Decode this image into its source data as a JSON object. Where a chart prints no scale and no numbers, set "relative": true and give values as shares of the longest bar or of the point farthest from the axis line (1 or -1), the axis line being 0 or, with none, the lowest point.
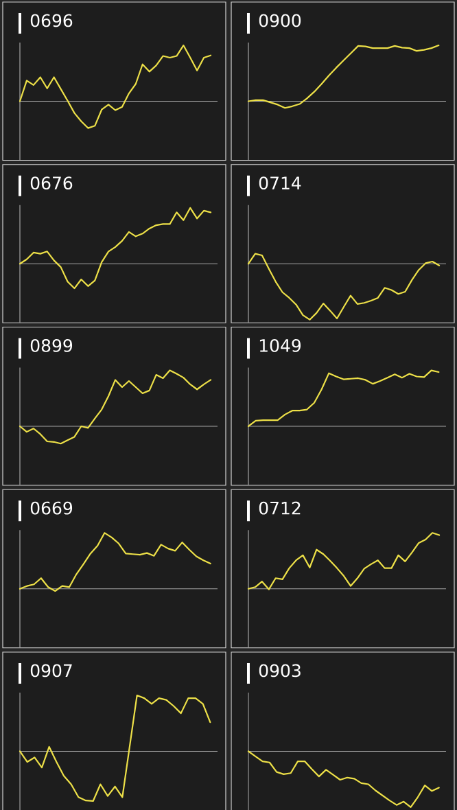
{
  "chart_data": [
    {
      "type": "line",
      "title": "0696",
      "categories": [
        null,
        null,
        null,
        null,
        null,
        null,
        null,
        null,
        null,
        null,
        null,
        null,
        null,
        null,
        null,
        null,
        null,
        null,
        null,
        null,
        null,
        null,
        null,
        null,
        null,
        null,
        null,
        null,
        null
      ],
      "values": [
        0,
        0.37,
        0.29,
        0.43,
        0.23,
        0.43,
        0.22,
        0.01,
        -0.21,
        -0.36,
        -0.48,
        -0.44,
        -0.15,
        -0.06,
        -0.16,
        -0.1,
        0.14,
        0.31,
        0.66,
        0.53,
        0.64,
        0.81,
        0.78,
        0.81,
        1.0,
        0.78,
        0.55,
        0.78,
        0.82
      ],
      "color": "#ede048",
      "relative": true
    },
    {
      "type": "line",
      "title": "0900",
      "categories": [
        null,
        null,
        null,
        null,
        null,
        null,
        null,
        null,
        null,
        null,
        null,
        null,
        null,
        null,
        null,
        null,
        null,
        null,
        null,
        null,
        null,
        null,
        null,
        null,
        null,
        null,
        null
      ],
      "values": [
        0,
        0.02,
        0.02,
        -0.02,
        -0.06,
        -0.12,
        -0.09,
        -0.05,
        0.05,
        0.17,
        0.31,
        0.46,
        0.6,
        0.73,
        0.86,
        0.99,
        0.98,
        0.95,
        0.95,
        0.95,
        0.99,
        0.96,
        0.95,
        0.9,
        0.92,
        0.95,
        1.0
      ],
      "color": "#ede048",
      "relative": true
    },
    {
      "type": "line",
      "title": "0676",
      "categories": [
        null,
        null,
        null,
        null,
        null,
        null,
        null,
        null,
        null,
        null,
        null,
        null,
        null,
        null,
        null,
        null,
        null,
        null,
        null,
        null,
        null,
        null,
        null,
        null,
        null,
        null,
        null,
        null,
        null
      ],
      "values": [
        0,
        0.08,
        0.2,
        0.18,
        0.22,
        0.06,
        -0.06,
        -0.32,
        -0.44,
        -0.28,
        -0.4,
        -0.3,
        0.03,
        0.22,
        0.3,
        0.41,
        0.57,
        0.49,
        0.54,
        0.63,
        0.69,
        0.71,
        0.71,
        0.92,
        0.78,
        1.0,
        0.81,
        0.95,
        0.92
      ],
      "color": "#ede048",
      "relative": true
    },
    {
      "type": "line",
      "title": "0714",
      "categories": [
        null,
        null,
        null,
        null,
        null,
        null,
        null,
        null,
        null,
        null,
        null,
        null,
        null,
        null,
        null,
        null,
        null,
        null,
        null,
        null,
        null,
        null,
        null,
        null,
        null,
        null,
        null,
        null,
        null
      ],
      "values": [
        0,
        0.18,
        0.15,
        -0.09,
        -0.32,
        -0.51,
        -0.61,
        -0.73,
        -0.92,
        -1.0,
        -0.88,
        -0.71,
        -0.84,
        -0.98,
        -0.77,
        -0.57,
        -0.72,
        -0.7,
        -0.66,
        -0.61,
        -0.43,
        -0.47,
        -0.54,
        -0.5,
        -0.29,
        -0.11,
        0.01,
        0.04,
        -0.03
      ],
      "color": "#ede048",
      "relative": true
    },
    {
      "type": "line",
      "title": "0899",
      "categories": [
        null,
        null,
        null,
        null,
        null,
        null,
        null,
        null,
        null,
        null,
        null,
        null,
        null,
        null,
        null,
        null,
        null,
        null,
        null,
        null,
        null,
        null,
        null,
        null,
        null,
        null,
        null,
        null,
        null
      ],
      "values": [
        0,
        -0.1,
        -0.04,
        -0.14,
        -0.27,
        -0.28,
        -0.31,
        -0.25,
        -0.19,
        0.0,
        -0.03,
        0.14,
        0.3,
        0.54,
        0.83,
        0.7,
        0.81,
        0.7,
        0.59,
        0.64,
        0.92,
        0.86,
        1.0,
        0.94,
        0.87,
        0.75,
        0.66,
        0.75,
        0.83
      ],
      "color": "#ede048",
      "relative": true
    },
    {
      "type": "line",
      "title": "1049",
      "categories": [
        null,
        null,
        null,
        null,
        null,
        null,
        null,
        null,
        null,
        null,
        null,
        null,
        null,
        null,
        null,
        null,
        null,
        null,
        null,
        null,
        null,
        null,
        null,
        null,
        null,
        null,
        null
      ],
      "values": [
        0,
        0.1,
        0.11,
        0.11,
        0.11,
        0.21,
        0.28,
        0.28,
        0.3,
        0.42,
        0.66,
        0.95,
        0.89,
        0.84,
        0.85,
        0.86,
        0.83,
        0.76,
        0.81,
        0.87,
        0.93,
        0.87,
        0.94,
        0.89,
        0.88,
        1.0,
        0.97
      ],
      "color": "#ede048",
      "relative": true
    },
    {
      "type": "line",
      "title": "0669",
      "categories": [
        null,
        null,
        null,
        null,
        null,
        null,
        null,
        null,
        null,
        null,
        null,
        null,
        null,
        null,
        null,
        null,
        null,
        null,
        null,
        null,
        null,
        null,
        null,
        null,
        null,
        null,
        null,
        null
      ],
      "values": [
        0,
        0.05,
        0.08,
        0.19,
        0.03,
        -0.04,
        0.05,
        0.03,
        0.26,
        0.44,
        0.63,
        0.77,
        1.0,
        0.92,
        0.81,
        0.63,
        0.62,
        0.61,
        0.64,
        0.59,
        0.79,
        0.72,
        0.68,
        0.83,
        0.7,
        0.58,
        0.51,
        0.45
      ],
      "color": "#ede048",
      "relative": true
    },
    {
      "type": "line",
      "title": "0712",
      "categories": [
        null,
        null,
        null,
        null,
        null,
        null,
        null,
        null,
        null,
        null,
        null,
        null,
        null,
        null,
        null,
        null,
        null,
        null,
        null,
        null,
        null,
        null,
        null,
        null,
        null,
        null,
        null,
        null,
        null
      ],
      "values": [
        0,
        0.03,
        0.13,
        -0.01,
        0.19,
        0.17,
        0.37,
        0.51,
        0.6,
        0.38,
        0.7,
        0.62,
        0.5,
        0.37,
        0.23,
        0.05,
        0.19,
        0.36,
        0.44,
        0.51,
        0.37,
        0.37,
        0.6,
        0.49,
        0.65,
        0.82,
        0.88,
        1.0,
        0.96
      ],
      "color": "#ede048",
      "relative": true
    },
    {
      "type": "line",
      "title": "0907",
      "categories": [
        null,
        null,
        null,
        null,
        null,
        null,
        null,
        null,
        null,
        null,
        null,
        null,
        null,
        null,
        null,
        null,
        null,
        null,
        null,
        null,
        null,
        null,
        null,
        null,
        null,
        null,
        null
      ],
      "values": [
        0,
        -0.19,
        -0.11,
        -0.29,
        0.08,
        -0.19,
        -0.44,
        -0.59,
        -0.82,
        -0.88,
        -0.89,
        -0.59,
        -0.8,
        -0.63,
        -0.82,
        0.09,
        1.0,
        0.95,
        0.85,
        0.95,
        0.92,
        0.81,
        0.68,
        0.95,
        0.95,
        0.85,
        0.52
      ],
      "color": "#ede048",
      "relative": true
    },
    {
      "type": "line",
      "title": "0903",
      "categories": [
        null,
        null,
        null,
        null,
        null,
        null,
        null,
        null,
        null,
        null,
        null,
        null,
        null,
        null,
        null,
        null,
        null,
        null,
        null,
        null,
        null,
        null,
        null,
        null,
        null,
        null,
        null,
        null
      ],
      "values": [
        0,
        -0.09,
        -0.18,
        -0.2,
        -0.37,
        -0.41,
        -0.39,
        -0.18,
        -0.18,
        -0.32,
        -0.45,
        -0.33,
        -0.42,
        -0.51,
        -0.47,
        -0.49,
        -0.57,
        -0.59,
        -0.7,
        -0.79,
        -0.88,
        -0.96,
        -0.9,
        -1.0,
        -0.82,
        -0.61,
        -0.71,
        -0.65
      ],
      "color": "#ede048",
      "relative": true
    }
  ]
}
